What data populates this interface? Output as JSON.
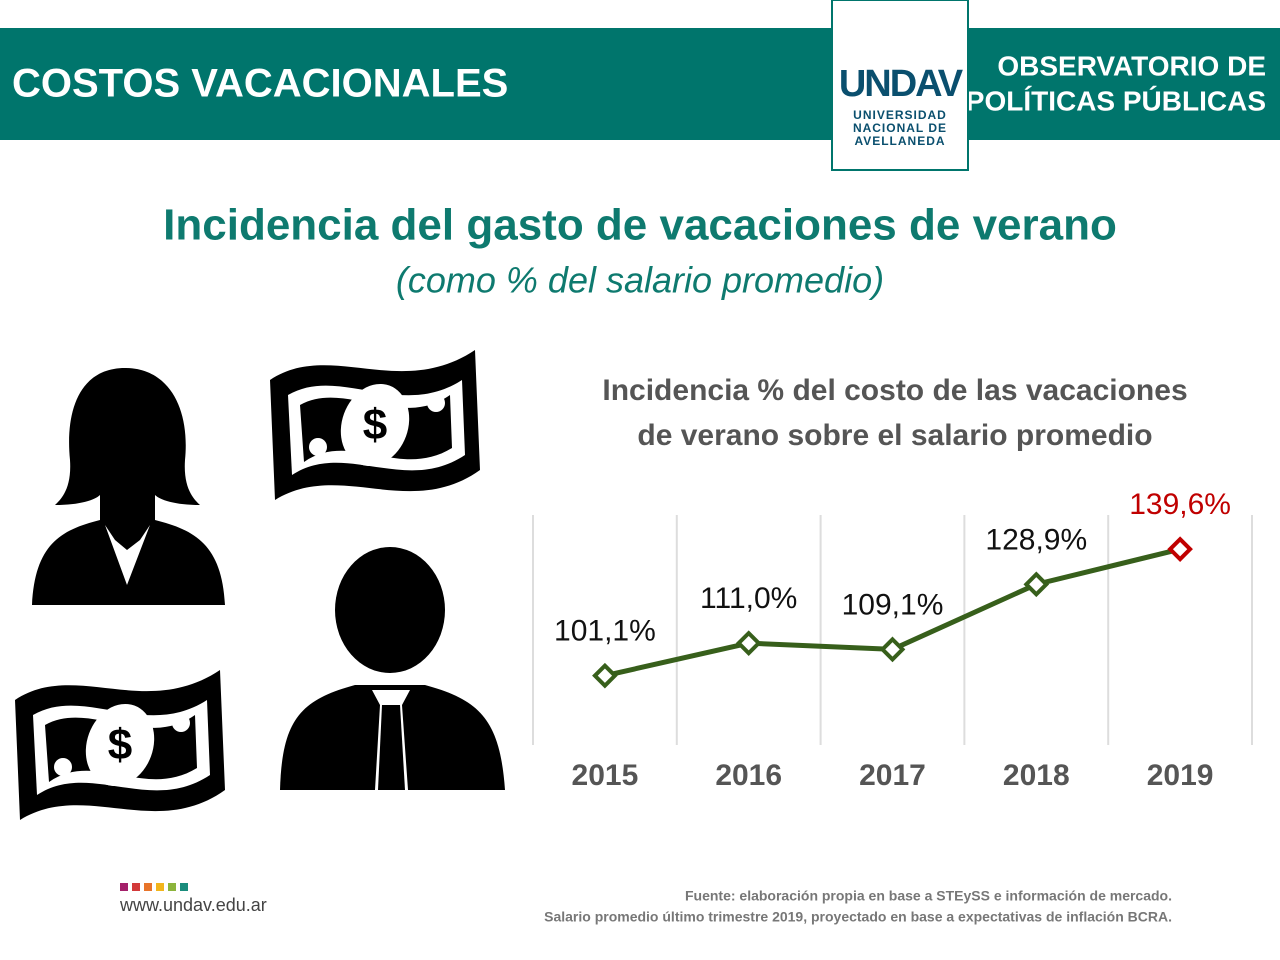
{
  "header": {
    "title": "COSTOS VACACIONALES",
    "org_lines": [
      "OBSERVATORIO DE",
      "POLÍTICAS PÚBLICAS"
    ],
    "logo": {
      "mark": "UNDAV",
      "lines": [
        "UNIVERSIDAD",
        "NACIONAL DE",
        "AVELLANEDA"
      ]
    }
  },
  "headline": "Incidencia del gasto de vacaciones de verano",
  "subheadline": "(como % del salario promedio)",
  "chart_data": {
    "type": "line",
    "title": [
      "Incidencia % del costo de las vacaciones",
      "de verano sobre el salario promedio"
    ],
    "categories": [
      "2015",
      "2016",
      "2017",
      "2018",
      "2019"
    ],
    "series": [
      {
        "name": "Incidencia",
        "color": "#375f1b",
        "values": [
          101.1,
          111.0,
          109.1,
          128.9,
          139.6
        ],
        "value_labels": [
          "101,1%",
          "111,0%",
          "109,1%",
          "128,9%",
          "139,6%"
        ],
        "point_colors": [
          "#375f1b",
          "#375f1b",
          "#375f1b",
          "#375f1b",
          "#c00000"
        ]
      }
    ],
    "ylim": [
      80,
      150
    ]
  },
  "footer": {
    "url": "www.undav.edu.ar",
    "source": [
      "Fuente: elaboración propia en base a STEySS e información de mercado.",
      "Salario promedio último trimestre 2019, proyectado en base a expectativas de inflación BCRA."
    ]
  }
}
